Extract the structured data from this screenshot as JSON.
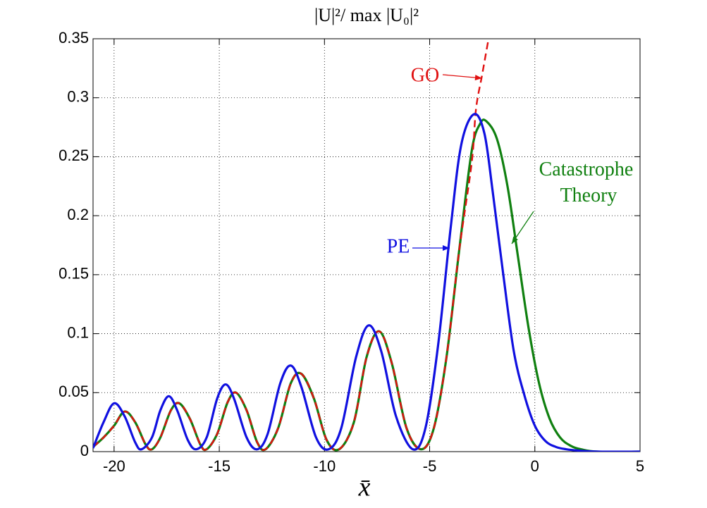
{
  "chart_data": {
    "type": "line",
    "title": "|U|²/ max |U₀|²",
    "x_label": "x̄",
    "xlim": [
      -21,
      5
    ],
    "xticks": [
      -20,
      -15,
      -10,
      -5,
      0,
      5
    ],
    "ylim": [
      0,
      0.35
    ],
    "yticks": [
      0,
      0.05,
      0.1,
      0.15,
      0.2,
      0.25,
      0.3,
      0.35
    ],
    "grid": true,
    "series": [
      {
        "name": "PE",
        "color": "#1010e0",
        "dash": false,
        "x": [
          -21,
          -20.5,
          -20,
          -19.5,
          -19,
          -18.7,
          -18.2,
          -17.8,
          -17.4,
          -17,
          -16.5,
          -16.1,
          -15.6,
          -15.1,
          -14.7,
          -14.3,
          -13.7,
          -13.2,
          -12.7,
          -12.1,
          -11.6,
          -11.1,
          -10.4,
          -9.8,
          -9.2,
          -8.5,
          -7.9,
          -7.3,
          -6.6,
          -5.8,
          -5.2,
          -4.6,
          -4,
          -3.5,
          -2.9,
          -2.4,
          -2,
          -1.5,
          -1,
          -0.5,
          0,
          0.5,
          1,
          1.5,
          2,
          3,
          5
        ],
        "values": [
          0.003,
          0.025,
          0.041,
          0.03,
          0.008,
          0.002,
          0.012,
          0.035,
          0.047,
          0.035,
          0.01,
          0.002,
          0.012,
          0.045,
          0.057,
          0.045,
          0.012,
          0.002,
          0.015,
          0.058,
          0.073,
          0.055,
          0.012,
          0.002,
          0.02,
          0.08,
          0.107,
          0.085,
          0.03,
          0.002,
          0.02,
          0.09,
          0.19,
          0.26,
          0.286,
          0.27,
          0.22,
          0.15,
          0.085,
          0.048,
          0.022,
          0.009,
          0.004,
          0.002,
          0.001,
          0,
          0
        ]
      },
      {
        "name": "Catastrophe Theory",
        "color": "#108010",
        "dash": false,
        "x": [
          -21,
          -20.5,
          -20,
          -19.5,
          -19,
          -18.5,
          -18.2,
          -17.8,
          -17.3,
          -16.9,
          -16.4,
          -15.9,
          -15.6,
          -15.1,
          -14.6,
          -14.2,
          -13.7,
          -13.2,
          -12.8,
          -12.2,
          -11.6,
          -11.1,
          -10.5,
          -9.9,
          -9.3,
          -8.6,
          -8,
          -7.4,
          -6.8,
          -6.1,
          -5.4,
          -4.8,
          -4.2,
          -3.6,
          -3,
          -2.6,
          -2.3,
          -1.8,
          -1.3,
          -0.8,
          -0.3,
          0.2,
          0.7,
          1.2,
          1.7,
          2.2,
          3,
          5
        ],
        "values": [
          0.004,
          0.012,
          0.022,
          0.034,
          0.025,
          0.006,
          0.002,
          0.012,
          0.035,
          0.041,
          0.028,
          0.006,
          0.002,
          0.015,
          0.042,
          0.05,
          0.035,
          0.008,
          0.002,
          0.02,
          0.058,
          0.066,
          0.045,
          0.01,
          0.002,
          0.025,
          0.08,
          0.102,
          0.075,
          0.02,
          0.002,
          0.02,
          0.08,
          0.17,
          0.255,
          0.278,
          0.28,
          0.265,
          0.225,
          0.165,
          0.105,
          0.058,
          0.028,
          0.012,
          0.005,
          0.002,
          0,
          0
        ]
      },
      {
        "name": "GO",
        "color": "#e01010",
        "dash": true,
        "x": [
          -21,
          -20.5,
          -20,
          -19.5,
          -19,
          -18.5,
          -18.2,
          -17.8,
          -17.3,
          -16.9,
          -16.4,
          -15.9,
          -15.6,
          -15.1,
          -14.6,
          -14.2,
          -13.7,
          -13.2,
          -12.8,
          -12.2,
          -11.6,
          -11.1,
          -10.5,
          -9.9,
          -9.3,
          -8.6,
          -8,
          -7.4,
          -6.8,
          -6.1,
          -5.4,
          -4.8,
          -4.2,
          -3.6,
          -3,
          -2.8,
          -2.5,
          -2.2
        ],
        "values": [
          0.004,
          0.012,
          0.022,
          0.034,
          0.025,
          0.006,
          0.002,
          0.012,
          0.035,
          0.041,
          0.028,
          0.006,
          0.002,
          0.015,
          0.042,
          0.05,
          0.035,
          0.008,
          0.002,
          0.02,
          0.058,
          0.066,
          0.045,
          0.01,
          0.002,
          0.025,
          0.08,
          0.102,
          0.075,
          0.02,
          0.002,
          0.02,
          0.08,
          0.17,
          0.245,
          0.29,
          0.32,
          0.35
        ]
      }
    ]
  }
}
